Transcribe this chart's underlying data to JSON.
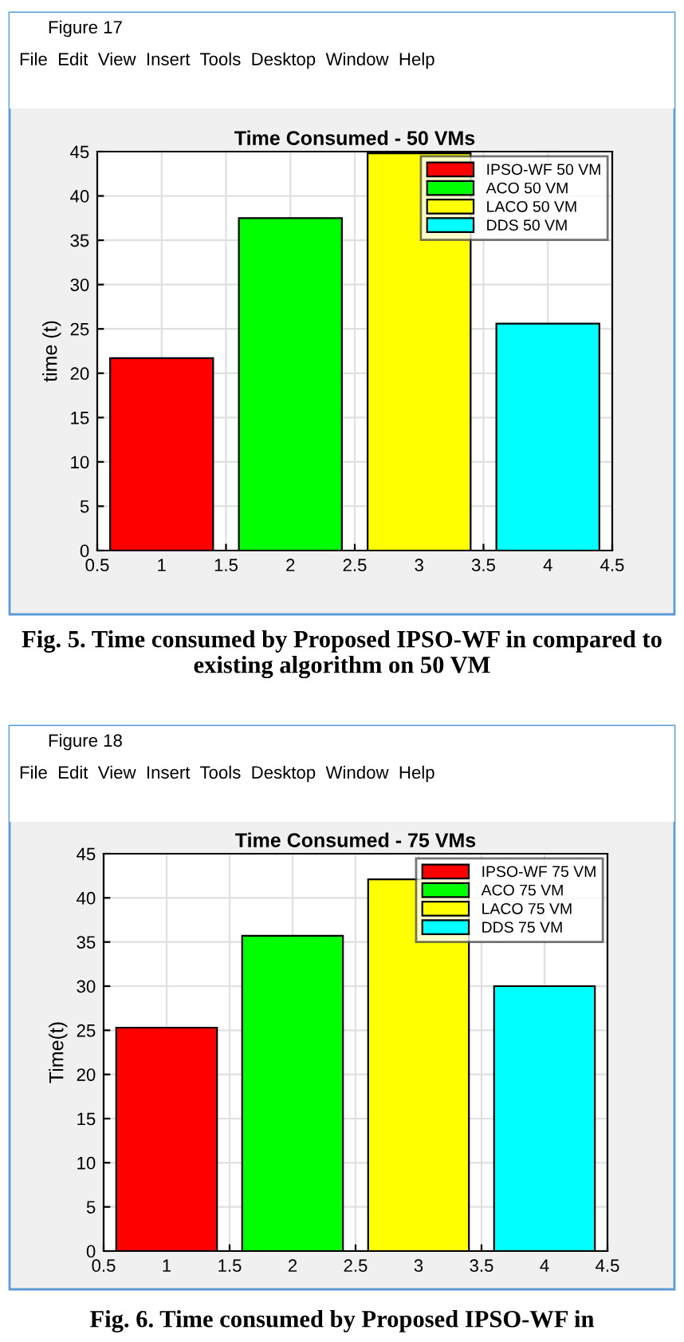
{
  "chart_data": [
    {
      "type": "bar",
      "title": "Time Consumed - 50 VMs",
      "ylabel": "time (t)",
      "series": [
        {
          "name": "IPSO-WF 50 VM",
          "color": "#ff0000",
          "x": [
            1
          ],
          "values": [
            21.7
          ]
        },
        {
          "name": "ACO 50 VM",
          "color": "#00ff00",
          "x": [
            2
          ],
          "values": [
            37.5
          ]
        },
        {
          "name": "LACO 50 VM",
          "color": "#ffff00",
          "x": [
            3
          ],
          "values": [
            44.8
          ]
        },
        {
          "name": "DDS 50 VM",
          "color": "#00ffff",
          "x": [
            4
          ],
          "values": [
            25.6
          ]
        }
      ],
      "xlim": [
        0.5,
        4.5
      ],
      "xticks": [
        0.5,
        1,
        1.5,
        2,
        2.5,
        3,
        3.5,
        4,
        4.5
      ],
      "ylim": [
        0,
        45
      ],
      "yticks": [
        0,
        5,
        10,
        15,
        20,
        25,
        30,
        35,
        40,
        45
      ],
      "grid": true,
      "legend": "top right",
      "annotations": [
        "Figure 17",
        "File  Edit  View  Insert  Tools  Desktop  Window  Help",
        "Fig. 5. Time consumed by Proposed IPSO-WF in compared to existing algorithm on 50 VM"
      ]
    },
    {
      "type": "bar",
      "title": "Time Consumed - 75 VMs",
      "ylabel": "Time(t)",
      "series": [
        {
          "name": "IPSO-WF 75 VM",
          "color": "#ff0000",
          "x": [
            1
          ],
          "values": [
            25.3
          ]
        },
        {
          "name": "ACO 75 VM",
          "color": "#00ff00",
          "x": [
            2
          ],
          "values": [
            35.7
          ]
        },
        {
          "name": "LACO 75 VM",
          "color": "#ffff00",
          "x": [
            3
          ],
          "values": [
            42.1
          ]
        },
        {
          "name": "DDS 75 VM",
          "color": "#00ffff",
          "x": [
            4
          ],
          "values": [
            30.0
          ]
        }
      ],
      "xlim": [
        0.5,
        4.5
      ],
      "xticks": [
        0.5,
        1,
        1.5,
        2,
        2.5,
        3,
        3.5,
        4,
        4.5
      ],
      "ylim": [
        0,
        45
      ],
      "yticks": [
        0,
        5,
        10,
        15,
        20,
        25,
        30,
        35,
        40,
        45
      ],
      "grid": true,
      "legend": "top right",
      "annotations": [
        "Figure 18",
        "File  Edit  View  Insert  Tools  Desktop  Window  Help",
        "Fig. 6. Time consumed by Proposed IPSO-WF in"
      ]
    }
  ]
}
